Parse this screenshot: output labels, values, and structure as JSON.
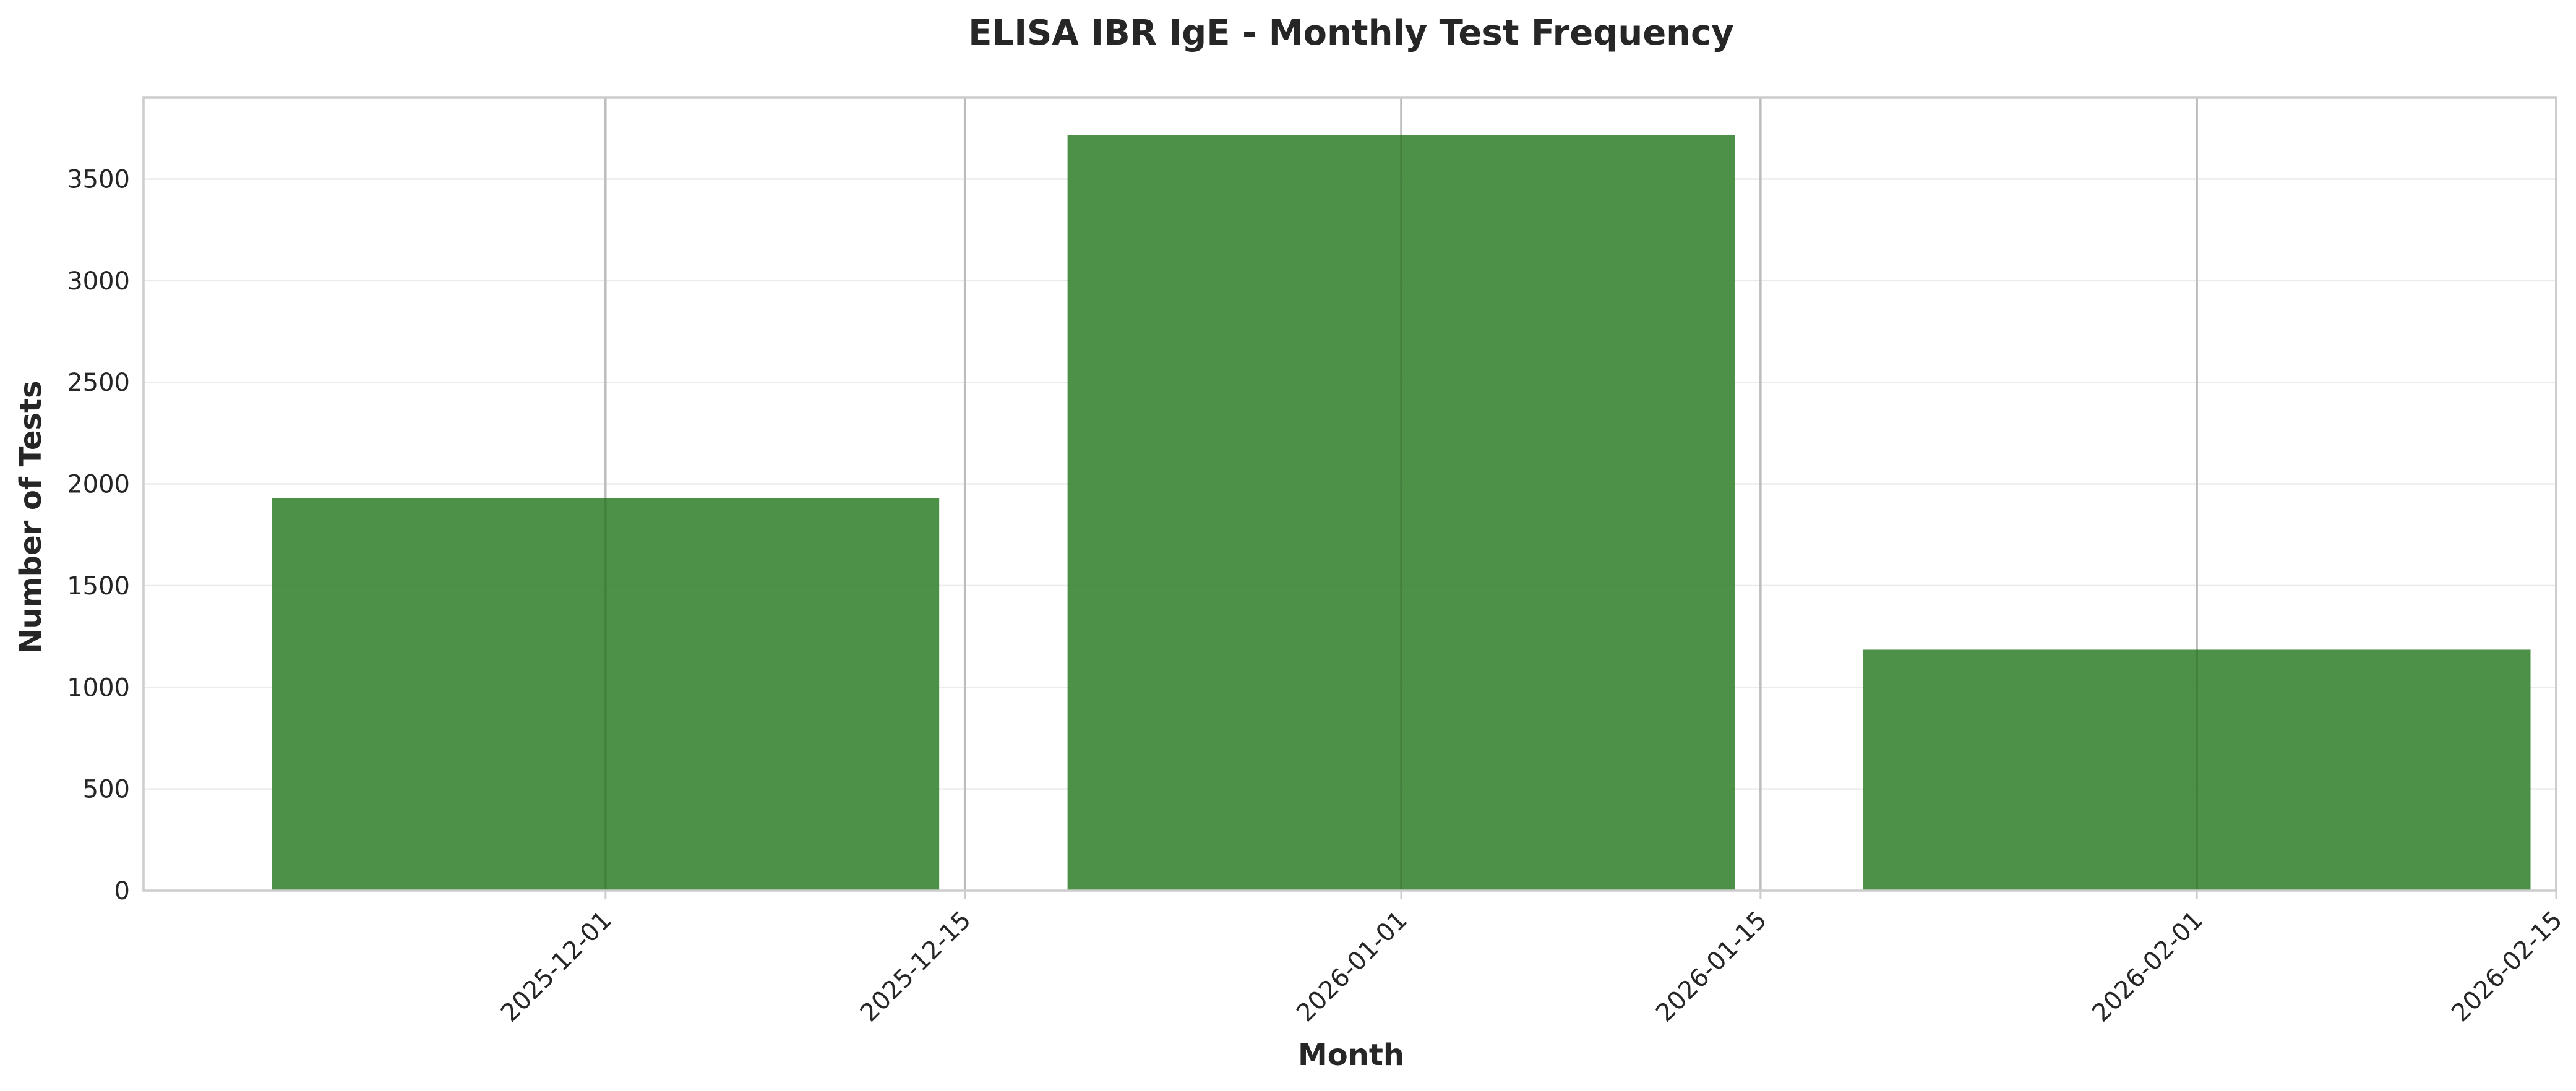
{
  "chart_data": {
    "type": "bar",
    "title": "ELISA IBR IgE - Monthly Test Frequency",
    "xlabel": "Month",
    "ylabel": "Number of Tests",
    "x_axis_type": "date",
    "xlim": [
      "2025-11-13",
      "2026-02-15"
    ],
    "ylim": [
      0,
      3900
    ],
    "x_ticks": [
      "2025-12-01",
      "2025-12-15",
      "2026-01-01",
      "2026-01-15",
      "2026-02-01",
      "2026-02-15"
    ],
    "y_ticks": [
      0,
      500,
      1000,
      1500,
      2000,
      2500,
      3000,
      3500
    ],
    "categories": [
      "2025-12-01",
      "2026-01-01",
      "2026-02-01"
    ],
    "values": [
      1930,
      3715,
      1185
    ],
    "bar_color": "#3a8534",
    "grid": true,
    "legend": "none"
  }
}
